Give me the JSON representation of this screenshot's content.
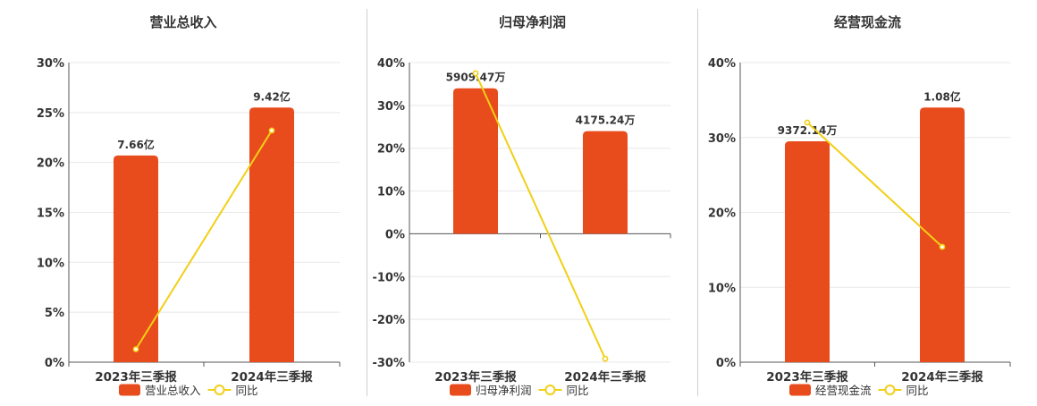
{
  "colors": {
    "bar": "#e84b1c",
    "line": "#f2cf16",
    "grid": "#e8e8e8",
    "axis": "#555555",
    "text": "#333333"
  },
  "chart_data": [
    {
      "type": "bar",
      "title": "营业总收入",
      "categories": [
        "2023年三季报",
        "2024年三季报"
      ],
      "yticks": [
        "30%",
        "25%",
        "20%",
        "15%",
        "10%",
        "5%",
        "0%"
      ],
      "ylim": [
        0,
        30
      ],
      "series": [
        {
          "name": "营业总收入",
          "kind": "bar",
          "values": [
            20.7,
            25.5
          ],
          "labels": [
            "7.66亿",
            "9.42亿"
          ]
        },
        {
          "name": "同比",
          "kind": "line",
          "values": [
            1.3,
            23.2
          ]
        }
      ],
      "legend": "bottom"
    },
    {
      "type": "bar",
      "title": "归母净利润",
      "categories": [
        "2023年三季报",
        "2024年三季报"
      ],
      "yticks": [
        "40%",
        "30%",
        "20%",
        "10%",
        "0%",
        "-10%",
        "-20%",
        "-30%"
      ],
      "ylim": [
        -30,
        40
      ],
      "series": [
        {
          "name": "归母净利润",
          "kind": "bar",
          "values": [
            34,
            24
          ],
          "labels": [
            "5909.47万",
            "4175.24万"
          ]
        },
        {
          "name": "同比",
          "kind": "line",
          "values": [
            37.5,
            -29.2
          ]
        }
      ],
      "legend": "bottom"
    },
    {
      "type": "bar",
      "title": "经营现金流",
      "categories": [
        "2023年三季报",
        "2024年三季报"
      ],
      "yticks": [
        "40%",
        "30%",
        "20%",
        "10%",
        "0%"
      ],
      "ylim": [
        0,
        40
      ],
      "series": [
        {
          "name": "经营现金流",
          "kind": "bar",
          "values": [
            29.5,
            34
          ],
          "labels": [
            "9372.14万",
            "1.08亿"
          ]
        },
        {
          "name": "同比",
          "kind": "line",
          "values": [
            32,
            15.4
          ]
        }
      ],
      "legend": "bottom"
    }
  ]
}
